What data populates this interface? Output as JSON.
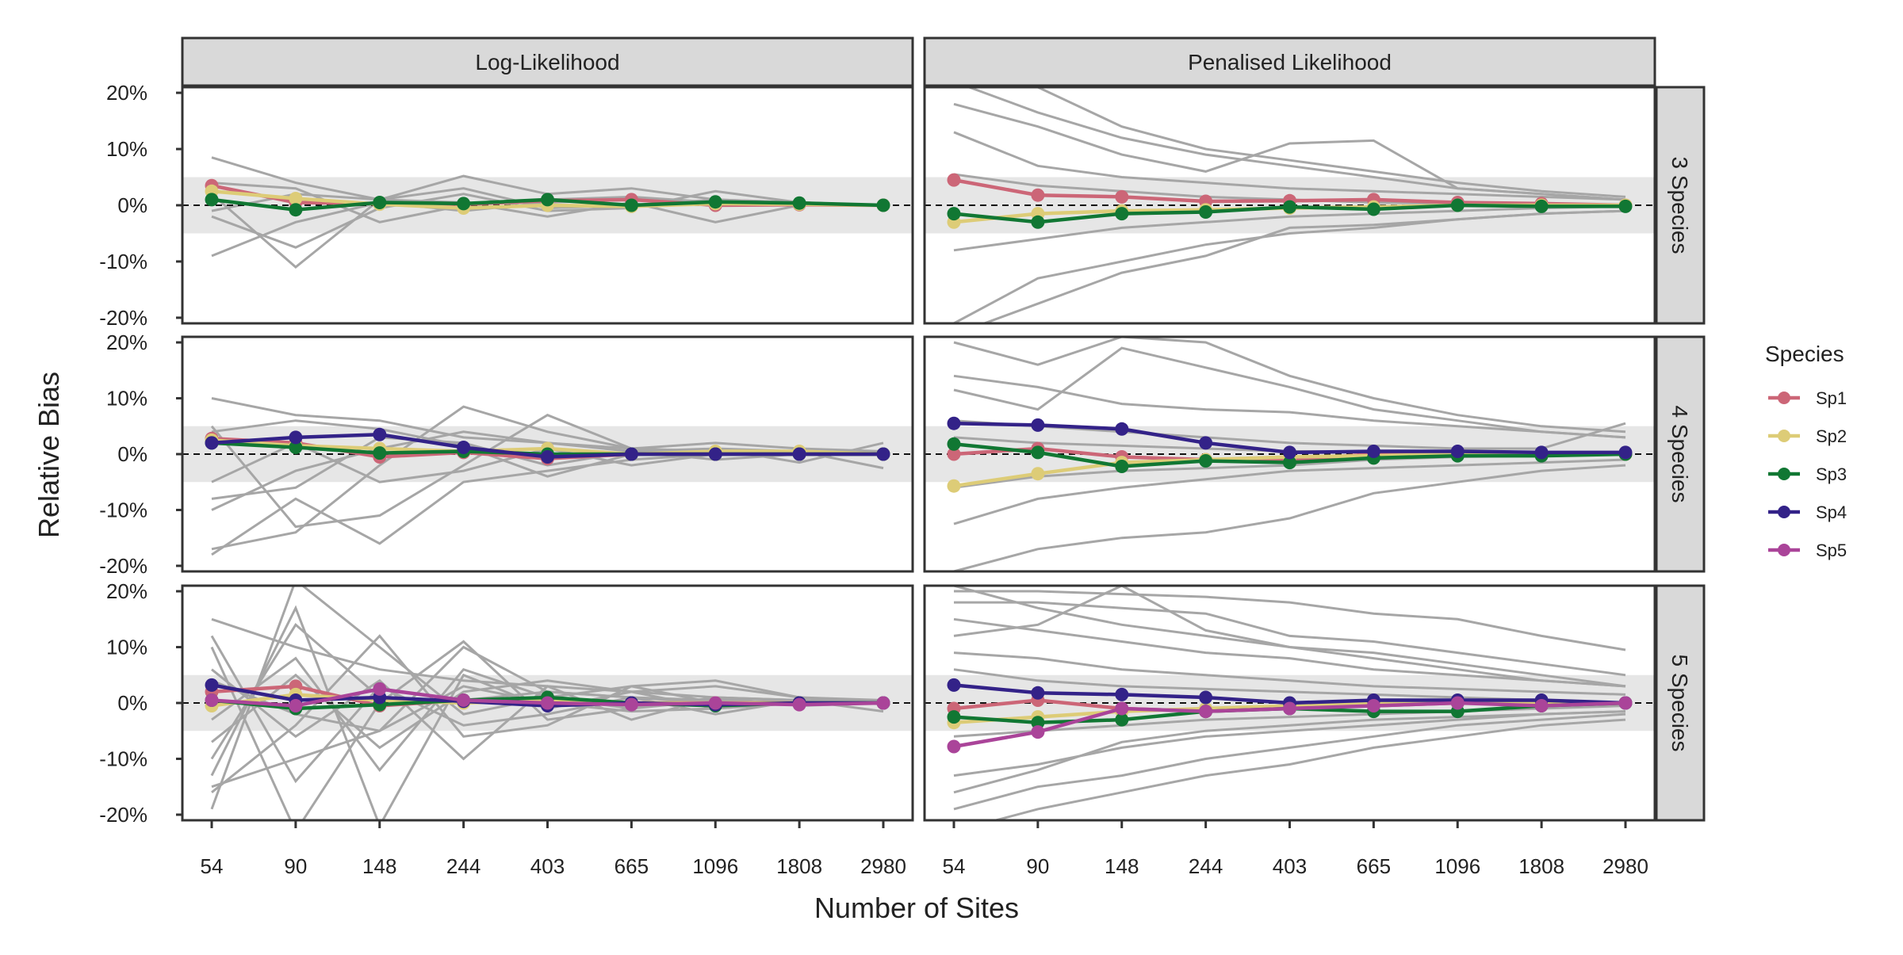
{
  "chart_data": {
    "type": "line",
    "xlabel": "Number of Sites",
    "ylabel": "Relative Bias",
    "x_categories": [
      "54",
      "90",
      "148",
      "244",
      "403",
      "665",
      "1096",
      "1808",
      "2980"
    ],
    "y_ticks": [
      -20,
      -10,
      0,
      10,
      20
    ],
    "y_tick_labels": [
      "-20%",
      "-10%",
      "0%",
      "10%",
      "20%"
    ],
    "ylim": [
      -21,
      21
    ],
    "reference_line": 0,
    "reference_band": [
      -5,
      5
    ],
    "column_facets": [
      "Log-Likelihood",
      "Penalised Likelihood"
    ],
    "row_facets": [
      "3 Species",
      "4 Species",
      "5 Species"
    ],
    "legend": {
      "title": "Species",
      "position": "right",
      "items": [
        {
          "name": "Sp1",
          "color": "#cc6677"
        },
        {
          "name": "Sp2",
          "color": "#ddcc77"
        },
        {
          "name": "Sp3",
          "color": "#117733"
        },
        {
          "name": "Sp4",
          "color": "#332288"
        },
        {
          "name": "Sp5",
          "color": "#aa4499"
        }
      ]
    },
    "panels": [
      {
        "row": "3 Species",
        "col": "Log-Likelihood",
        "series": [
          {
            "name": "Sp1",
            "values": [
              3.5,
              0.5,
              0.3,
              0.2,
              0.8,
              1.0,
              0.0,
              0.1,
              0.0
            ]
          },
          {
            "name": "Sp2",
            "values": [
              2.5,
              1.2,
              0.2,
              -0.5,
              0.0,
              -0.2,
              0.3,
              0.2,
              0.0
            ]
          },
          {
            "name": "Sp3",
            "values": [
              1.0,
              -0.8,
              0.5,
              0.3,
              1.0,
              0.0,
              0.6,
              0.4,
              0.0
            ]
          }
        ],
        "replicates": [
          [
            8.5,
            4.0,
            1.0,
            5.2,
            2.0,
            3.0,
            1.0,
            0.5,
            0.0
          ],
          [
            -9.0,
            -3.0,
            0.5,
            -1.0,
            0.5,
            1.0,
            0.0,
            0.5,
            0.0
          ],
          [
            2.0,
            -11.0,
            1.0,
            0.5,
            -2.0,
            0.5,
            -3.0,
            0.0,
            0.0
          ],
          [
            -2.0,
            -7.5,
            -0.5,
            2.0,
            -1.0,
            -0.5,
            2.5,
            0.5,
            0.0
          ],
          [
            4.0,
            3.0,
            -3.0,
            0.0,
            1.0,
            1.5,
            0.5,
            0.0,
            0.0
          ],
          [
            -1.0,
            2.0,
            1.0,
            3.0,
            -0.5,
            0.0,
            1.0,
            0.5,
            0.0
          ]
        ]
      },
      {
        "row": "3 Species",
        "col": "Penalised Likelihood",
        "series": [
          {
            "name": "Sp1",
            "values": [
              4.5,
              1.8,
              1.5,
              0.7,
              0.8,
              1.0,
              0.5,
              0.3,
              0.0
            ]
          },
          {
            "name": "Sp2",
            "values": [
              -3.0,
              -1.5,
              -1.0,
              -0.8,
              -0.5,
              -0.3,
              0.0,
              0.0,
              0.0
            ]
          },
          {
            "name": "Sp3",
            "values": [
              -1.5,
              -3.0,
              -1.5,
              -1.2,
              -0.3,
              -0.7,
              0.0,
              -0.2,
              -0.2
            ]
          }
        ],
        "replicates": [
          [
            22,
            16.5,
            12.0,
            9.0,
            7.0,
            5.0,
            3.0,
            2.0,
            1.0
          ],
          [
            21,
            21,
            14.0,
            10.0,
            8.0,
            6.0,
            4.0,
            2.5,
            1.5
          ],
          [
            18,
            14,
            9.0,
            6.0,
            11.0,
            11.5,
            3.0,
            2.0,
            1.0
          ],
          [
            13,
            7,
            5.0,
            4.0,
            3.0,
            2.5,
            2.0,
            1.5,
            1.0
          ],
          [
            -21,
            -13,
            -10,
            -7.0,
            -5.0,
            -4.0,
            -2.5,
            -1.5,
            -1.0
          ],
          [
            -23,
            -17.5,
            -12,
            -9.0,
            -4.0,
            -3.5,
            -2.5,
            -1.5,
            -1.0
          ],
          [
            -8,
            -6,
            -4,
            -3.0,
            -2.0,
            -1.5,
            -1.0,
            -0.5,
            -0.2
          ],
          [
            5.5,
            3.5,
            2.5,
            1.5,
            1.0,
            0.5,
            0.3,
            0.2,
            0.0
          ]
        ]
      },
      {
        "row": "4 Species",
        "col": "Log-Likelihood",
        "series": [
          {
            "name": "Sp1",
            "values": [
              2.8,
              2.0,
              -0.5,
              0.3,
              -0.8,
              0.0,
              0.0,
              0.0,
              0.0
            ]
          },
          {
            "name": "Sp2",
            "values": [
              2.5,
              1.5,
              1.0,
              0.5,
              1.0,
              0.0,
              0.5,
              0.5,
              0.0
            ]
          },
          {
            "name": "Sp3",
            "values": [
              2.0,
              1.2,
              0.2,
              0.5,
              0.0,
              0.0,
              0.0,
              0.0,
              0.0
            ]
          },
          {
            "name": "Sp4",
            "values": [
              2.0,
              3.0,
              3.5,
              1.2,
              -0.5,
              0.0,
              0.0,
              0.0,
              0.0
            ]
          }
        ],
        "replicates": [
          [
            10.0,
            7.0,
            6.0,
            3.0,
            2.0,
            1.0,
            0.5,
            0.5,
            0.0
          ],
          [
            -18.0,
            -8.0,
            -16.0,
            -5.0,
            -3.0,
            -1.0,
            0.0,
            0.0,
            0.0
          ],
          [
            -17.0,
            -14.0,
            -2.0,
            8.5,
            4.0,
            1.0,
            0.5,
            0.0,
            0.0
          ],
          [
            5.0,
            -13.0,
            -11.0,
            -2.0,
            7.0,
            1.0,
            2.0,
            1.0,
            0.5
          ],
          [
            -8.0,
            -6.0,
            3.0,
            2.0,
            -2.0,
            0.5,
            -1.0,
            0.0,
            0.0
          ],
          [
            4.0,
            6.0,
            4.5,
            1.5,
            -4.0,
            0.0,
            1.0,
            -1.5,
            2.0
          ],
          [
            -5.0,
            2.0,
            -5.0,
            -3.0,
            1.0,
            -2.0,
            0.0,
            0.0,
            0.0
          ],
          [
            -10.0,
            -3.0,
            1.0,
            4.0,
            2.0,
            0.5,
            1.0,
            0.5,
            -2.5
          ]
        ]
      },
      {
        "row": "4 Species",
        "col": "Penalised Likelihood",
        "series": [
          {
            "name": "Sp1",
            "values": [
              0.0,
              1.0,
              -0.5,
              -1.0,
              -1.0,
              0.0,
              0.0,
              0.0,
              0.0
            ]
          },
          {
            "name": "Sp2",
            "values": [
              -5.7,
              -3.5,
              -1.5,
              -1.0,
              -0.5,
              -0.3,
              0.0,
              0.0,
              0.0
            ]
          },
          {
            "name": "Sp3",
            "values": [
              1.8,
              0.3,
              -2.2,
              -1.2,
              -1.5,
              -0.7,
              -0.3,
              -0.3,
              0.0
            ]
          },
          {
            "name": "Sp4",
            "values": [
              5.5,
              5.2,
              4.5,
              2.0,
              0.3,
              0.5,
              0.5,
              0.3,
              0.3
            ]
          }
        ],
        "replicates": [
          [
            20,
            16,
            21,
            20,
            14,
            10,
            7.0,
            5.0,
            4.0
          ],
          [
            11.5,
            8.0,
            19,
            15.5,
            12.0,
            8.0,
            6.0,
            4.0,
            3.0
          ],
          [
            -12.5,
            -8.0,
            -6.0,
            -4.5,
            -3.0,
            -2.5,
            -2.0,
            -1.5,
            -1.0
          ],
          [
            -21,
            -17,
            -15,
            -14,
            -11.5,
            -7.0,
            -5.0,
            -3.0,
            -2.0
          ],
          [
            6.0,
            5.0,
            4.0,
            3.0,
            2.0,
            1.5,
            1.0,
            1.0,
            5.5
          ],
          [
            -6.0,
            -4.0,
            -3.0,
            -2.5,
            -2.0,
            -1.0,
            -0.5,
            -0.3,
            0.0
          ],
          [
            14,
            12,
            9.0,
            8.0,
            7.5,
            6.0,
            5.0,
            4.0,
            3.0
          ],
          [
            3.0,
            2.0,
            1.5,
            1.0,
            0.5,
            0.5,
            0.3,
            0.2,
            0.0
          ]
        ]
      },
      {
        "row": "5 Species",
        "col": "Log-Likelihood",
        "series": [
          {
            "name": "Sp1",
            "values": [
              2.0,
              3.0,
              -0.5,
              0.5,
              0.0,
              0.0,
              0.0,
              0.0,
              0.0
            ]
          },
          {
            "name": "Sp2",
            "values": [
              -0.5,
              1.5,
              0.5,
              0.0,
              0.5,
              0.0,
              0.0,
              0.0,
              0.0
            ]
          },
          {
            "name": "Sp3",
            "values": [
              0.5,
              -1.0,
              -0.3,
              0.5,
              1.0,
              0.0,
              -0.5,
              0.0,
              0.0
            ]
          },
          {
            "name": "Sp4",
            "values": [
              3.2,
              0.5,
              1.0,
              0.3,
              -0.5,
              0.0,
              -0.3,
              0.0,
              0.0
            ]
          },
          {
            "name": "Sp5",
            "values": [
              0.5,
              -0.5,
              2.5,
              0.5,
              0.0,
              -0.3,
              0.0,
              -0.3,
              0.0
            ]
          }
        ],
        "replicates": [
          [
            15.0,
            10.0,
            6.0,
            4.0,
            3.0,
            2.0,
            1.0,
            0.5,
            0.0
          ],
          [
            -15.0,
            -10.0,
            -5.0,
            10.0,
            2.0,
            1.0,
            0.5,
            0.0,
            0.0
          ],
          [
            -19.0,
            22.0,
            10.0,
            -2.0,
            1.0,
            3.0,
            4.0,
            1.0,
            0.0
          ],
          [
            10.0,
            -23.0,
            0.0,
            11.0,
            -3.0,
            -1.0,
            0.5,
            0.0,
            0.0
          ],
          [
            -13.0,
            17.0,
            -22.0,
            5.0,
            -1.0,
            2.0,
            -1.0,
            0.0,
            0.0
          ],
          [
            6.0,
            -6.0,
            4.0,
            -10.0,
            3.0,
            -3.0,
            1.0,
            0.5,
            0.0
          ],
          [
            -7.0,
            5.0,
            -8.0,
            2.0,
            4.0,
            2.0,
            3.0,
            1.0,
            0.5
          ],
          [
            12.0,
            -14.0,
            3.0,
            -4.0,
            -2.0,
            1.0,
            -2.0,
            0.5,
            0.0
          ],
          [
            -3.0,
            8.0,
            -12.0,
            6.0,
            1.0,
            -1.0,
            1.0,
            -0.5,
            0.0
          ],
          [
            -16.0,
            -4.0,
            12.0,
            -6.0,
            -4.0,
            3.0,
            0.0,
            0.0,
            0.0
          ],
          [
            4.0,
            -2.0,
            -5.0,
            3.0,
            0.0,
            -1.5,
            -1.0,
            0.0,
            0.0
          ],
          [
            -10.0,
            14.0,
            1.0,
            0.5,
            2.0,
            1.0,
            0.0,
            0.5,
            -1.5
          ]
        ]
      },
      {
        "row": "5 Species",
        "col": "Penalised Likelihood",
        "series": [
          {
            "name": "Sp1",
            "values": [
              -1.0,
              0.5,
              -1.0,
              -1.5,
              -0.5,
              -0.5,
              0.0,
              0.0,
              0.0
            ]
          },
          {
            "name": "Sp2",
            "values": [
              -3.5,
              -2.5,
              -1.5,
              -1.0,
              -0.5,
              0.0,
              0.0,
              0.0,
              0.0
            ]
          },
          {
            "name": "Sp3",
            "values": [
              -2.5,
              -3.5,
              -3.0,
              -1.5,
              -1.0,
              -1.5,
              -1.5,
              -0.5,
              0.0
            ]
          },
          {
            "name": "Sp4",
            "values": [
              3.2,
              1.8,
              1.5,
              1.0,
              0.0,
              0.5,
              0.5,
              0.5,
              0.0
            ]
          },
          {
            "name": "Sp5",
            "values": [
              -7.8,
              -5.2,
              -1.0,
              -1.5,
              -1.0,
              -0.5,
              0.0,
              -0.5,
              0.0
            ]
          }
        ],
        "replicates": [
          [
            20,
            20,
            19.5,
            19.0,
            18.0,
            16.0,
            15.0,
            12.0,
            9.5
          ],
          [
            18,
            18,
            17.0,
            16.0,
            12.0,
            11.0,
            9.0,
            7.0,
            5.0
          ],
          [
            -19,
            -15,
            -13,
            -10.0,
            -8.0,
            -6.0,
            -4.0,
            -3.0,
            -2.0
          ],
          [
            -23,
            -19,
            -16,
            -13,
            -11.0,
            -8.0,
            -6.0,
            -4.0,
            -3.0
          ],
          [
            15,
            13,
            11,
            9.0,
            8.0,
            6.0,
            5.0,
            4.0,
            3.0
          ],
          [
            -13,
            -11,
            -8.0,
            -6.0,
            -5.0,
            -4.0,
            -3.0,
            -2.0,
            -1.5
          ],
          [
            9.0,
            8.0,
            6.0,
            5.0,
            4.0,
            3.0,
            2.5,
            2.0,
            1.5
          ],
          [
            -6.0,
            -5.0,
            -4.0,
            -3.0,
            -2.5,
            -2.0,
            -1.5,
            -1.0,
            -0.5
          ],
          [
            12,
            14,
            21,
            13.0,
            10.0,
            8.0,
            6.0,
            4.0,
            3.0
          ],
          [
            -16,
            -12,
            -7.0,
            -5.0,
            -4.0,
            -3.0,
            -2.5,
            -2.0,
            -1.5
          ],
          [
            6.0,
            4.0,
            3.0,
            2.5,
            2.0,
            1.5,
            1.0,
            0.5,
            0.0
          ],
          [
            21,
            17,
            14,
            12.0,
            10.0,
            9.0,
            7.0,
            5.0,
            3.0
          ]
        ]
      }
    ]
  }
}
